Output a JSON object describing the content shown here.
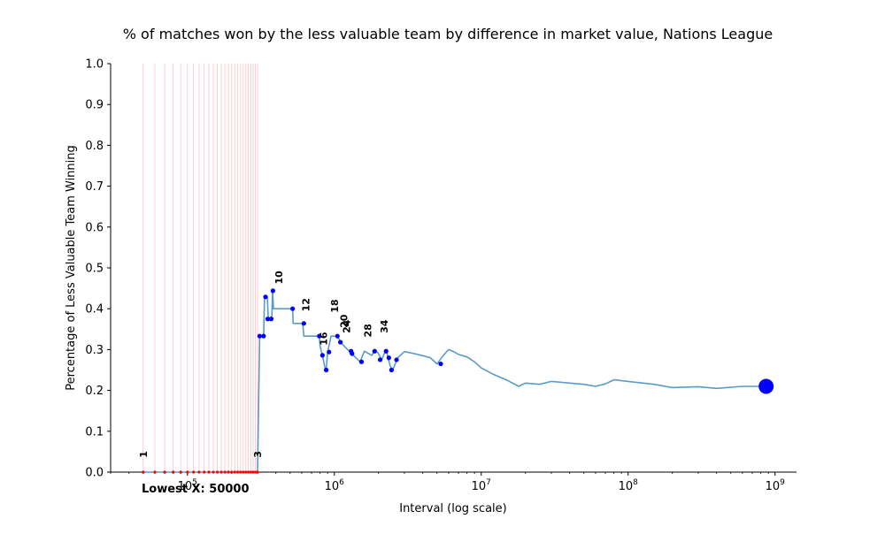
{
  "chart_data": {
    "type": "line",
    "title": "% of matches won by the less valuable team by difference in market value, Nations League",
    "xlabel": "Interval (log scale)",
    "ylabel": "Percentage of Less Valuable Team Winning",
    "xscale": "log",
    "xlim": [
      30000,
      1400000000
    ],
    "ylim": [
      0.0,
      1.0
    ],
    "yticks": [
      0.0,
      0.1,
      0.2,
      0.3,
      0.4,
      0.5,
      0.6,
      0.7,
      0.8,
      0.9,
      1.0
    ],
    "ytick_labels": [
      "0.0",
      "0.1",
      "0.2",
      "0.3",
      "0.4",
      "0.5",
      "0.6",
      "0.7",
      "0.8",
      "0.9",
      "1.0"
    ],
    "xticks": [
      {
        "value": 100000,
        "base": "10",
        "exp": "5"
      },
      {
        "value": 1000000,
        "base": "10",
        "exp": "6"
      },
      {
        "value": 10000000,
        "base": "10",
        "exp": "7"
      },
      {
        "value": 100000000,
        "base": "10",
        "exp": "8"
      },
      {
        "value": 1000000000,
        "base": "10",
        "exp": "9"
      }
    ],
    "series_color": "#5a9bc8",
    "point_color": "#0000ff",
    "zero_point_color": "#ff0000",
    "vline_color": "#ffc0cb",
    "grid": false,
    "line_points": [
      [
        50000,
        0.0
      ],
      [
        300000,
        0.0
      ],
      [
        310000,
        0.333
      ],
      [
        330000,
        0.333
      ],
      [
        335000,
        0.429
      ],
      [
        350000,
        0.429
      ],
      [
        355000,
        0.375
      ],
      [
        375000,
        0.375
      ],
      [
        380000,
        0.444
      ],
      [
        385000,
        0.4
      ],
      [
        520000,
        0.4
      ],
      [
        525000,
        0.364
      ],
      [
        610000,
        0.364
      ],
      [
        620000,
        0.333
      ],
      [
        790000,
        0.333
      ],
      [
        800000,
        0.308
      ],
      [
        830000,
        0.286
      ],
      [
        870000,
        0.25
      ],
      [
        880000,
        0.25
      ],
      [
        900000,
        0.294
      ],
      [
        950000,
        0.333
      ],
      [
        1050000,
        0.333
      ],
      [
        1100000,
        0.318
      ],
      [
        1200000,
        0.304
      ],
      [
        1300000,
        0.292
      ],
      [
        1400000,
        0.28
      ],
      [
        1500000,
        0.27
      ],
      [
        1600000,
        0.296
      ],
      [
        1800000,
        0.286
      ],
      [
        1900000,
        0.3
      ],
      [
        2000000,
        0.29
      ],
      [
        2100000,
        0.275
      ],
      [
        2250000,
        0.3
      ],
      [
        2400000,
        0.26
      ],
      [
        2500000,
        0.25
      ],
      [
        2700000,
        0.28
      ],
      [
        3000000,
        0.295
      ],
      [
        3500000,
        0.29
      ],
      [
        4000000,
        0.285
      ],
      [
        4500000,
        0.28
      ],
      [
        5000000,
        0.265
      ],
      [
        5500000,
        0.285
      ],
      [
        6000000,
        0.3
      ],
      [
        6500000,
        0.295
      ],
      [
        7000000,
        0.288
      ],
      [
        8000000,
        0.282
      ],
      [
        9000000,
        0.27
      ],
      [
        10000000,
        0.255
      ],
      [
        12000000,
        0.24
      ],
      [
        15000000,
        0.225
      ],
      [
        18000000,
        0.21
      ],
      [
        20000000,
        0.218
      ],
      [
        25000000,
        0.215
      ],
      [
        30000000,
        0.222
      ],
      [
        40000000,
        0.218
      ],
      [
        50000000,
        0.215
      ],
      [
        60000000,
        0.21
      ],
      [
        70000000,
        0.216
      ],
      [
        80000000,
        0.226
      ],
      [
        100000000,
        0.222
      ],
      [
        150000000,
        0.215
      ],
      [
        200000000,
        0.207
      ],
      [
        300000000,
        0.209
      ],
      [
        400000000,
        0.205
      ],
      [
        600000000,
        0.21
      ],
      [
        870000000,
        0.21
      ]
    ],
    "marker_points": [
      [
        310000,
        0.333
      ],
      [
        330000,
        0.333
      ],
      [
        340000,
        0.429
      ],
      [
        352000,
        0.375
      ],
      [
        372000,
        0.375
      ],
      [
        382000,
        0.444
      ],
      [
        520000,
        0.4
      ],
      [
        620000,
        0.364
      ],
      [
        790000,
        0.333
      ],
      [
        830000,
        0.286
      ],
      [
        880000,
        0.25
      ],
      [
        920000,
        0.294
      ],
      [
        1050000,
        0.333
      ],
      [
        1100000,
        0.318
      ],
      [
        1300000,
        0.296
      ],
      [
        1320000,
        0.29
      ],
      [
        1530000,
        0.27
      ],
      [
        1880000,
        0.296
      ],
      [
        2050000,
        0.275
      ],
      [
        2250000,
        0.296
      ],
      [
        2350000,
        0.28
      ],
      [
        2450000,
        0.25
      ],
      [
        2650000,
        0.275
      ],
      [
        5300000,
        0.265
      ]
    ],
    "zero_points": [
      50000,
      60000,
      70000,
      80000,
      90000,
      100000,
      110000,
      120000,
      130000,
      140000,
      150000,
      160000,
      170000,
      180000,
      190000,
      200000,
      210000,
      220000,
      230000,
      240000,
      250000,
      260000,
      270000,
      280000,
      290000,
      300000
    ],
    "vlines": [
      50000,
      60000,
      70000,
      80000,
      90000,
      100000,
      110000,
      120000,
      130000,
      140000,
      150000,
      160000,
      170000,
      180000,
      190000,
      200000,
      210000,
      220000,
      230000,
      240000,
      250000,
      260000,
      270000,
      280000,
      290000,
      300000
    ],
    "final_point": [
      870000000,
      0.21
    ],
    "annotations": [
      {
        "text": "1",
        "x": 50000,
        "y": 0.035
      },
      {
        "text": "3",
        "x": 300000,
        "y": 0.035
      },
      {
        "text": "10",
        "x": 420000,
        "y": 0.46
      },
      {
        "text": "12",
        "x": 640000,
        "y": 0.393
      },
      {
        "text": "16",
        "x": 845000,
        "y": 0.31
      },
      {
        "text": "18",
        "x": 1000000,
        "y": 0.39
      },
      {
        "text": "20",
        "x": 1160000,
        "y": 0.353
      },
      {
        "text": "24",
        "x": 1210000,
        "y": 0.34
      },
      {
        "text": "28",
        "x": 1690000,
        "y": 0.33
      },
      {
        "text": "34",
        "x": 2180000,
        "y": 0.34
      }
    ],
    "lowest_label": "Lowest X: 50000",
    "lowest_label_color": "#ff0000"
  }
}
